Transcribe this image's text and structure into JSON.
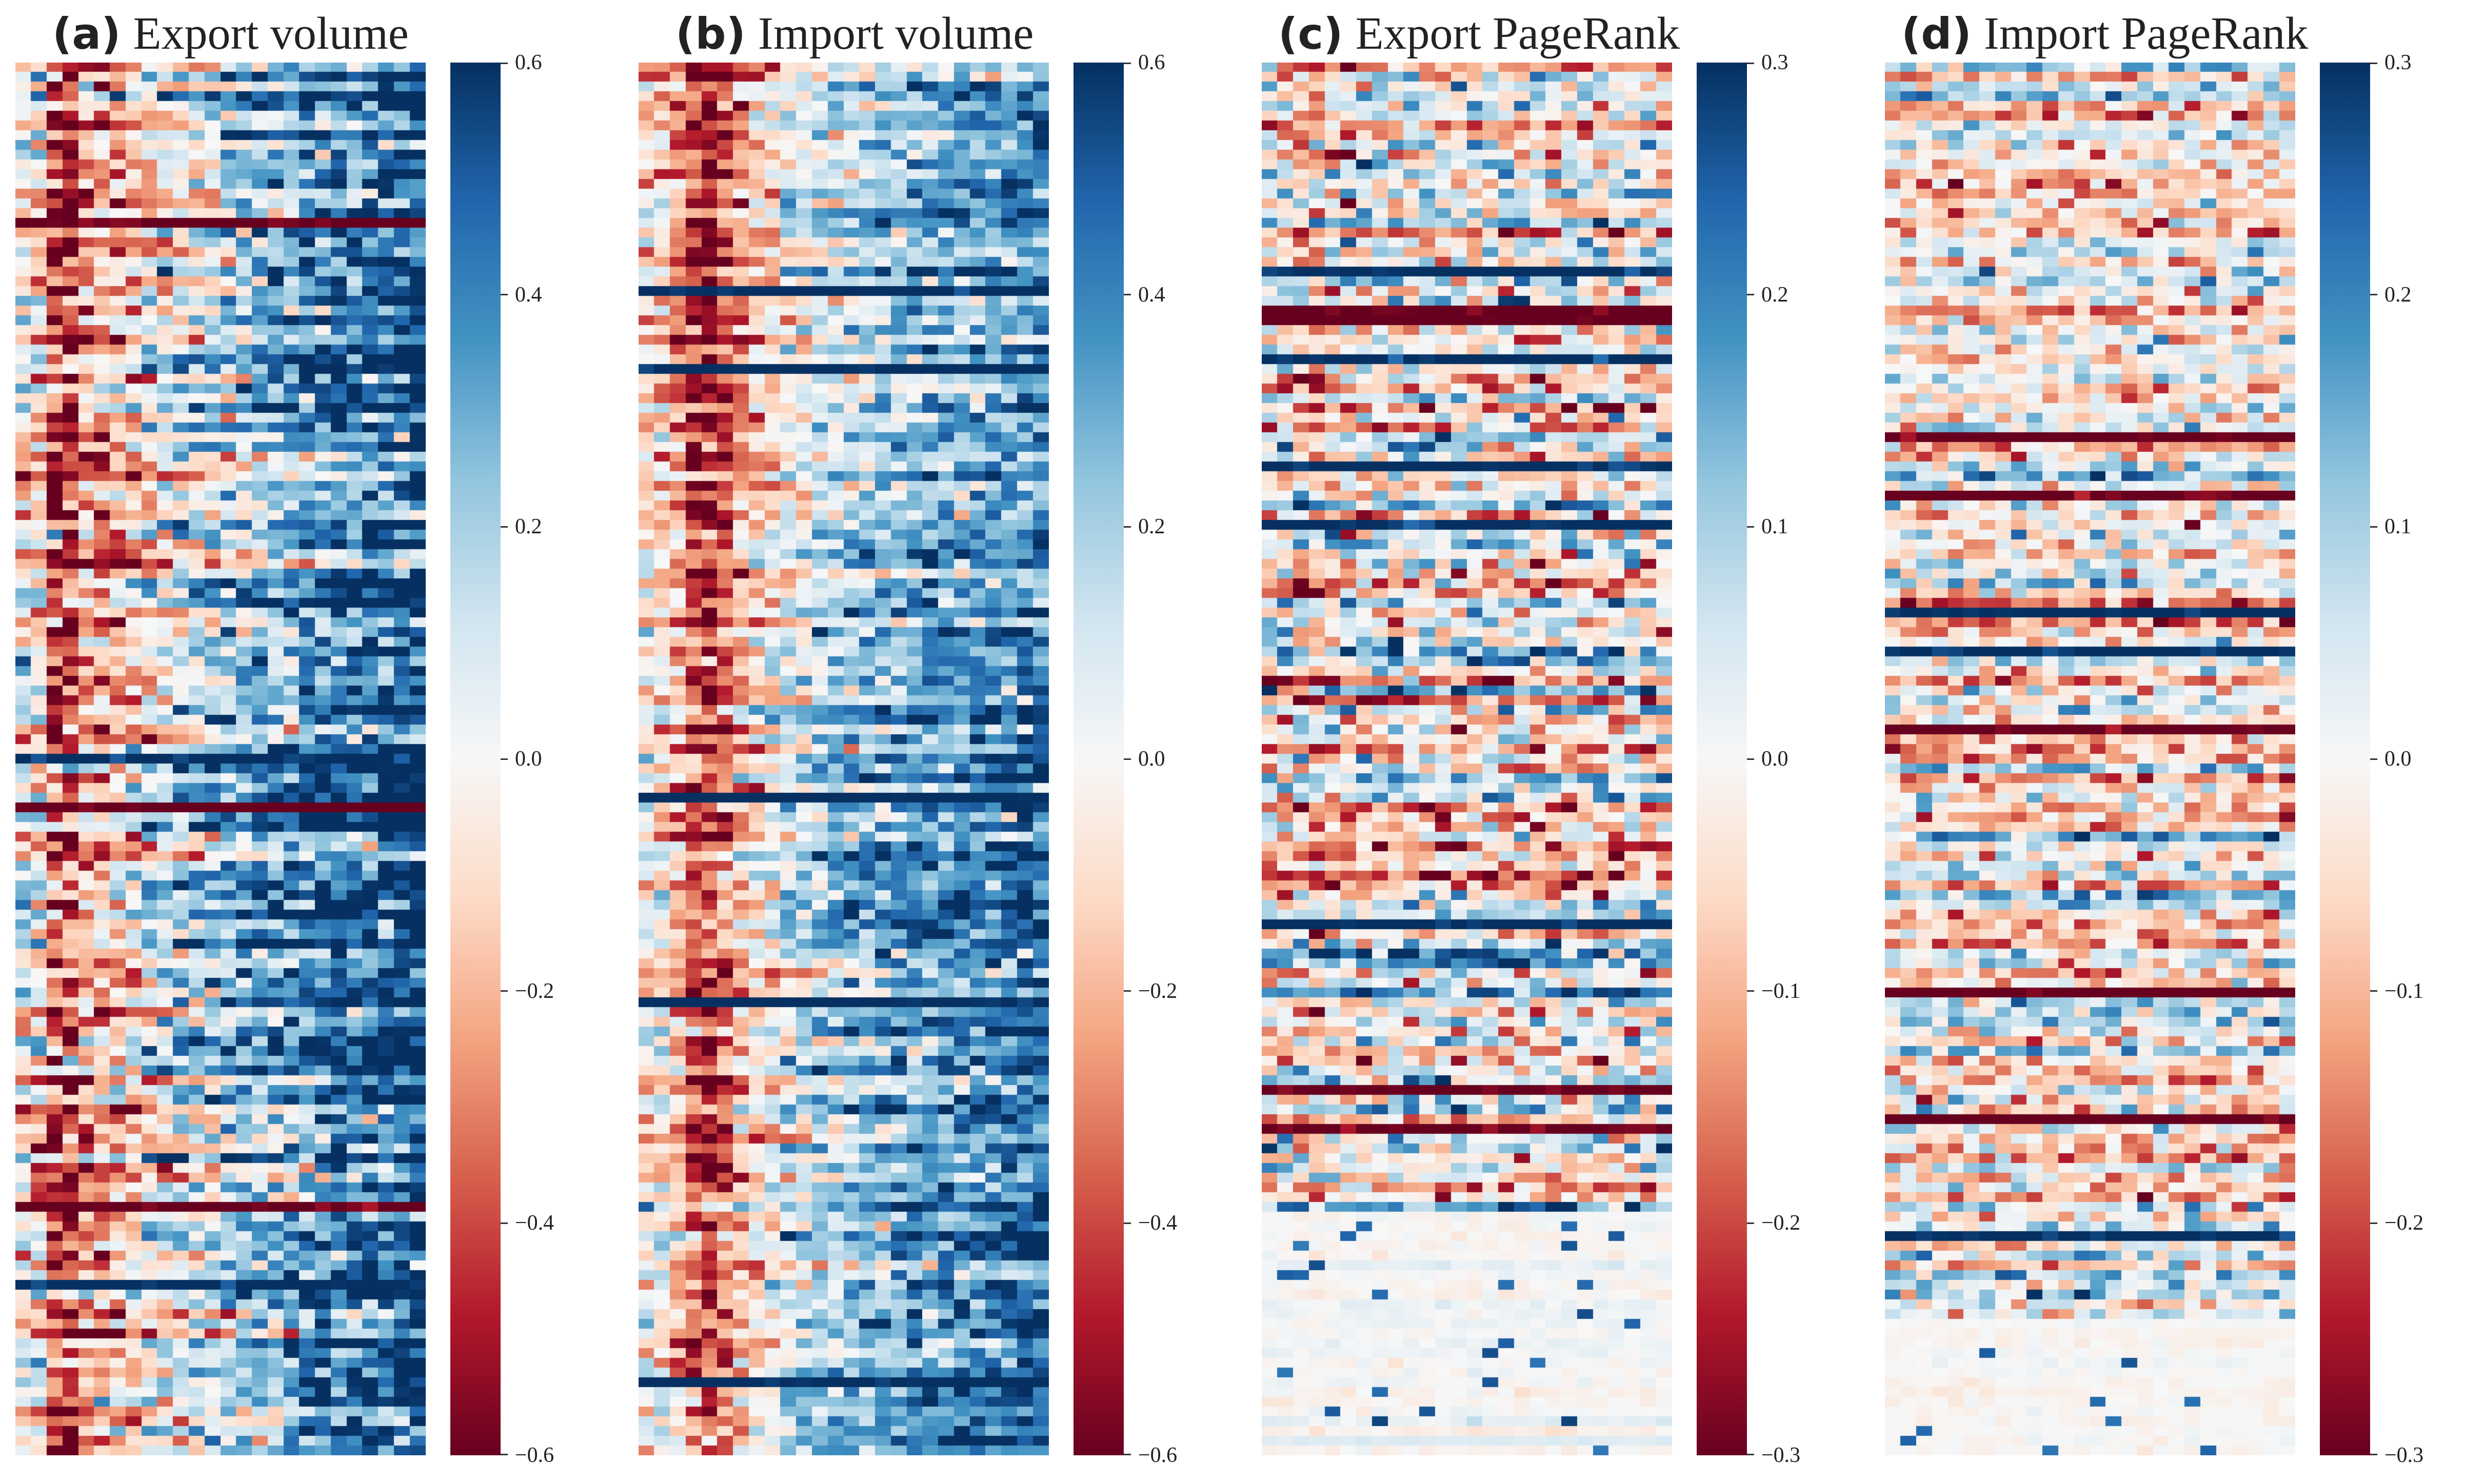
{
  "chart_data": [
    {
      "type": "heatmap",
      "panel_label": "(a)",
      "title": "Export volume",
      "colormap": "RdBu",
      "vmin": -0.6,
      "vmax": 0.6,
      "colorbar_ticks": [
        "0.6",
        "0.4",
        "0.2",
        "0.0",
        "−0.2",
        "−0.4",
        "−0.6"
      ],
      "colorbar_values": [
        0.6,
        0.4,
        0.2,
        0.0,
        -0.2,
        -0.4,
        -0.6
      ],
      "rows": 143,
      "cols": 26,
      "seed": 11,
      "noise": 0.18,
      "col_profile": [
        -0.05,
        -0.15,
        -0.45,
        -0.5,
        -0.3,
        -0.25,
        -0.2,
        -0.15,
        -0.1,
        -0.05,
        0,
        0.05,
        0.05,
        0.1,
        0.15,
        0.2,
        0.2,
        0.25,
        0.3,
        0.3,
        0.35,
        0.35,
        0.4,
        0.4,
        0.45,
        0.5
      ],
      "row_bands": [
        {
          "start": 0.0,
          "end": 0.12,
          "value": 0.0
        },
        {
          "start": 0.12,
          "end": 0.48,
          "value": 0.05
        },
        {
          "start": 0.48,
          "end": 0.7,
          "value": 0.15
        },
        {
          "start": 0.7,
          "end": 1.0,
          "value": 0.05
        }
      ]
    },
    {
      "type": "heatmap",
      "panel_label": "(b)",
      "title": "Import volume",
      "colormap": "RdBu",
      "vmin": -0.6,
      "vmax": 0.6,
      "colorbar_ticks": [
        "0.6",
        "0.4",
        "0.2",
        "0.0",
        "−0.2",
        "−0.4",
        "−0.6"
      ],
      "colorbar_values": [
        0.6,
        0.4,
        0.2,
        0.0,
        -0.2,
        -0.4,
        -0.6
      ],
      "rows": 143,
      "cols": 26,
      "seed": 23,
      "noise": 0.14,
      "col_profile": [
        -0.08,
        -0.12,
        -0.25,
        -0.45,
        -0.5,
        -0.35,
        -0.25,
        -0.15,
        -0.08,
        0,
        0.05,
        0.1,
        0.12,
        0.15,
        0.18,
        0.2,
        0.22,
        0.25,
        0.25,
        0.28,
        0.3,
        0.3,
        0.32,
        0.35,
        0.38,
        0.4
      ],
      "row_bands": [
        {
          "start": 0.0,
          "end": 0.3,
          "value": 0.0
        },
        {
          "start": 0.3,
          "end": 0.78,
          "value": 0.05
        },
        {
          "start": 0.78,
          "end": 1.0,
          "value": 0.1
        }
      ]
    },
    {
      "type": "heatmap",
      "panel_label": "(c)",
      "title": "Export PageRank",
      "colormap": "RdBu",
      "vmin": -0.3,
      "vmax": 0.3,
      "colorbar_ticks": [
        "0.3",
        "0.2",
        "0.1",
        "0.0",
        "−0.1",
        "−0.2",
        "−0.3"
      ],
      "colorbar_values": [
        0.3,
        0.2,
        0.1,
        0.0,
        -0.1,
        -0.2,
        -0.3
      ],
      "rows": 143,
      "cols": 26,
      "seed": 37,
      "noise": 0.1,
      "col_profile": [
        0,
        -0.02,
        -0.08,
        -0.1,
        -0.05,
        -0.03,
        0,
        0,
        0.01,
        0,
        0,
        0.01,
        0,
        0,
        0,
        0.01,
        0,
        0,
        0,
        0,
        0,
        0,
        0,
        0,
        0,
        0
      ],
      "row_bands": [
        {
          "start": 0.0,
          "end": 0.45,
          "value": -0.02
        },
        {
          "start": 0.45,
          "end": 0.8,
          "value": 0.0
        },
        {
          "start": 0.8,
          "end": 1.0,
          "value": 0.0
        }
      ],
      "fade_after": 0.82
    },
    {
      "type": "heatmap",
      "panel_label": "(d)",
      "title": "Import PageRank",
      "colormap": "RdBu",
      "vmin": -0.3,
      "vmax": 0.3,
      "colorbar_ticks": [
        "0.3",
        "0.2",
        "0.1",
        "0.0",
        "−0.1",
        "−0.2",
        "−0.3"
      ],
      "colorbar_values": [
        0.3,
        0.2,
        0.1,
        0.0,
        -0.1,
        -0.2,
        -0.3
      ],
      "rows": 143,
      "cols": 26,
      "seed": 53,
      "noise": 0.08,
      "col_profile": [
        0,
        0,
        -0.02,
        -0.04,
        -0.03,
        -0.02,
        0,
        0,
        0,
        0.01,
        0,
        0,
        0,
        0.01,
        0,
        0,
        0,
        0,
        0,
        0,
        0,
        0,
        0,
        0,
        0,
        0
      ],
      "row_bands": [
        {
          "start": 0.0,
          "end": 1.0,
          "value": -0.01
        }
      ],
      "fade_after": 0.9
    }
  ]
}
